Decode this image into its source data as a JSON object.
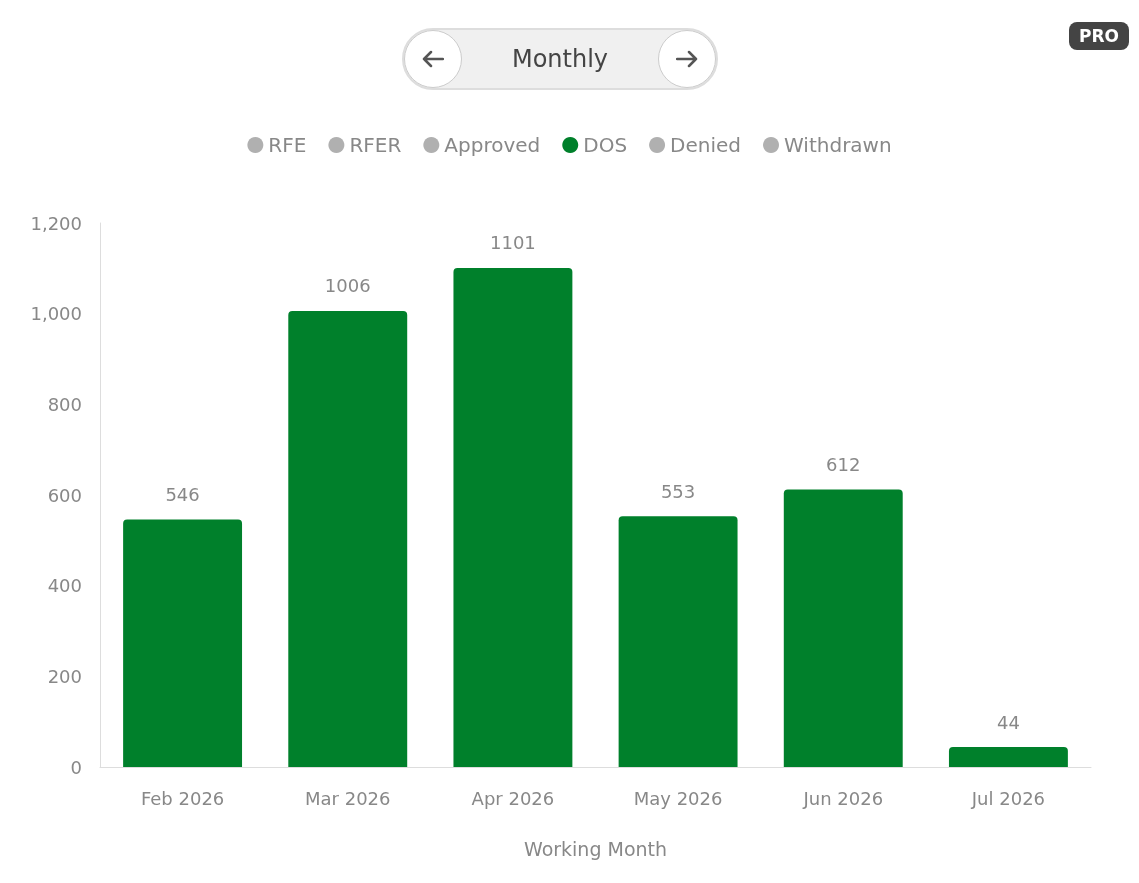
{
  "chart_data": {
    "type": "bar",
    "xlabel": "Working Month",
    "categories": [
      "Feb 2026",
      "Mar 2026",
      "Apr 2026",
      "May 2026",
      "Jun 2026",
      "Jul 2026"
    ],
    "series": [
      {
        "name": "RFE",
        "color": "#b0b0b0",
        "values": [
          null,
          null,
          null,
          null,
          null,
          null
        ]
      },
      {
        "name": "RFER",
        "color": "#b0b0b0",
        "values": [
          null,
          null,
          null,
          null,
          null,
          null
        ]
      },
      {
        "name": "Approved",
        "color": "#b0b0b0",
        "values": [
          null,
          null,
          null,
          null,
          null,
          null
        ]
      },
      {
        "name": "DOS",
        "color": "#00802b",
        "values": [
          546,
          1006,
          1101,
          553,
          612,
          44
        ]
      },
      {
        "name": "Denied",
        "color": "#b0b0b0",
        "values": [
          null,
          null,
          null,
          null,
          null,
          null
        ]
      },
      {
        "name": "Withdrawn",
        "color": "#b0b0b0",
        "values": [
          null,
          null,
          null,
          null,
          null,
          null
        ]
      }
    ],
    "ylim": [
      0,
      1200
    ],
    "yticks": [
      0,
      200,
      400,
      600,
      800,
      {
        "value": 1000,
        "label": "1,000"
      },
      {
        "value": 1200,
        "label": "1,200"
      }
    ],
    "grid": false,
    "legend": "top",
    "data_labels": true,
    "annotations": [
      "Monthly",
      "PRO"
    ]
  }
}
